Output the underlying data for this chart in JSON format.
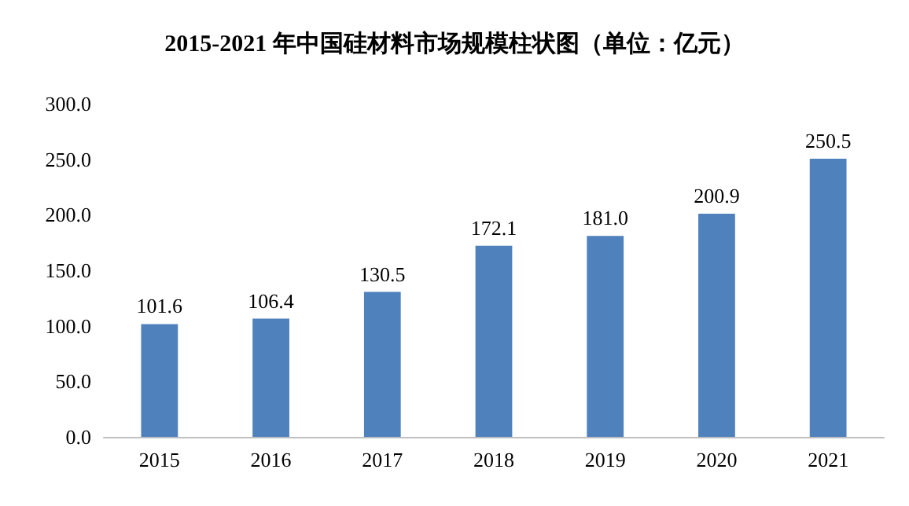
{
  "chart_data": {
    "type": "bar",
    "title": "2015-2021 年中国硅材料市场规模柱状图（单位：亿元）",
    "categories": [
      "2015",
      "2016",
      "2017",
      "2018",
      "2019",
      "2020",
      "2021"
    ],
    "values": [
      101.6,
      106.4,
      130.5,
      172.1,
      181.0,
      200.9,
      250.5
    ],
    "value_labels": [
      "101.6",
      "106.4",
      "130.5",
      "172.1",
      "181.0",
      "200.9",
      "250.5"
    ],
    "color": "#4f81bd",
    "ylim": [
      0,
      300
    ],
    "yticks": [
      {
        "value": 0,
        "label": "0.0"
      },
      {
        "value": 50,
        "label": "50.0"
      },
      {
        "value": 100,
        "label": "100.0"
      },
      {
        "value": 150,
        "label": "150.0"
      },
      {
        "value": 200,
        "label": "200.0"
      },
      {
        "value": 250,
        "label": "250.0"
      },
      {
        "value": 300,
        "label": "300.0"
      }
    ],
    "grid": false
  }
}
